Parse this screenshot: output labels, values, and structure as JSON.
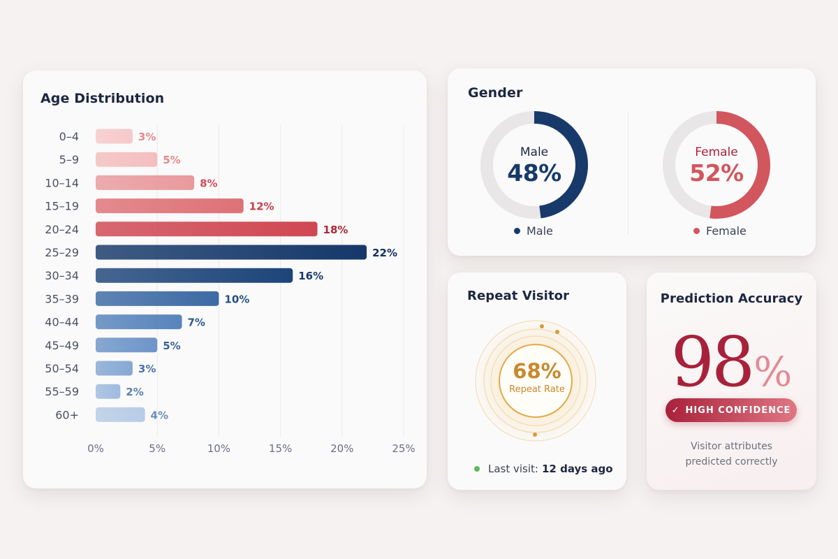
{
  "age": {
    "title": "Age Distribution",
    "chart_data": {
      "type": "bar",
      "orientation": "horizontal",
      "title": "Age Distribution",
      "categories": [
        "0–4",
        "5–9",
        "10–14",
        "15–19",
        "20–24",
        "25–29",
        "30–34",
        "35–39",
        "40–44",
        "45–49",
        "50–54",
        "55–59",
        "60+"
      ],
      "values": [
        3,
        5,
        8,
        12,
        18,
        22,
        16,
        10,
        7,
        5,
        3,
        2,
        4
      ],
      "value_labels": [
        "3%",
        "5%",
        "8%",
        "12%",
        "18%",
        "22%",
        "16%",
        "10%",
        "7%",
        "5%",
        "3%",
        "2%",
        "4%"
      ],
      "xlim": [
        0,
        25
      ],
      "x_ticks": [
        0,
        5,
        10,
        15,
        20,
        25
      ],
      "x_tick_labels": [
        "0%",
        "5%",
        "10%",
        "15%",
        "20%",
        "25%"
      ],
      "grid": "vertical",
      "bar_colors": [
        "#f6c9c9",
        "#f4bebe",
        "#e99a9c",
        "#de7176",
        "#cf4752",
        "#15386a",
        "#1d4579",
        "#3c6aa5",
        "#5784bb",
        "#6d95c8",
        "#86a8d3",
        "#9fbbdf",
        "#b7cce6"
      ],
      "label_colors": [
        "#e08a8d",
        "#e08a8d",
        "#d24d59",
        "#c83d4a",
        "#b22638",
        "#142f5c",
        "#173a6b",
        "#254f86",
        "#2f5a8f",
        "#3a6499",
        "#4a72a5",
        "#5a7fae",
        "#6b8db8"
      ]
    }
  },
  "gender": {
    "title": "Gender",
    "chart_data": {
      "type": "pie",
      "variant": "donut",
      "categories": [
        "Male",
        "Female"
      ],
      "values": [
        48,
        52
      ],
      "value_labels": [
        "48%",
        "52%"
      ],
      "colors": [
        "#173a6b",
        "#d2565e"
      ],
      "track_color": "#e8e6e6"
    },
    "legend": [
      "Male",
      "Female"
    ]
  },
  "repeat": {
    "title": "Repeat Visitor",
    "value": "68%",
    "label": "Repeat Rate",
    "last_visit_label": "Last visit:",
    "last_visit_value": "12 days ago",
    "accent": "#d4942f",
    "status_color": "#5cb85c"
  },
  "accuracy": {
    "title": "Prediction Accuracy",
    "value": "98",
    "unit": "%",
    "badge": "HIGH CONFIDENCE",
    "badge_icon": "check-icon",
    "caption_line1": "Visitor attributes",
    "caption_line2": "predicted correctly",
    "accent": "#a8213a"
  }
}
